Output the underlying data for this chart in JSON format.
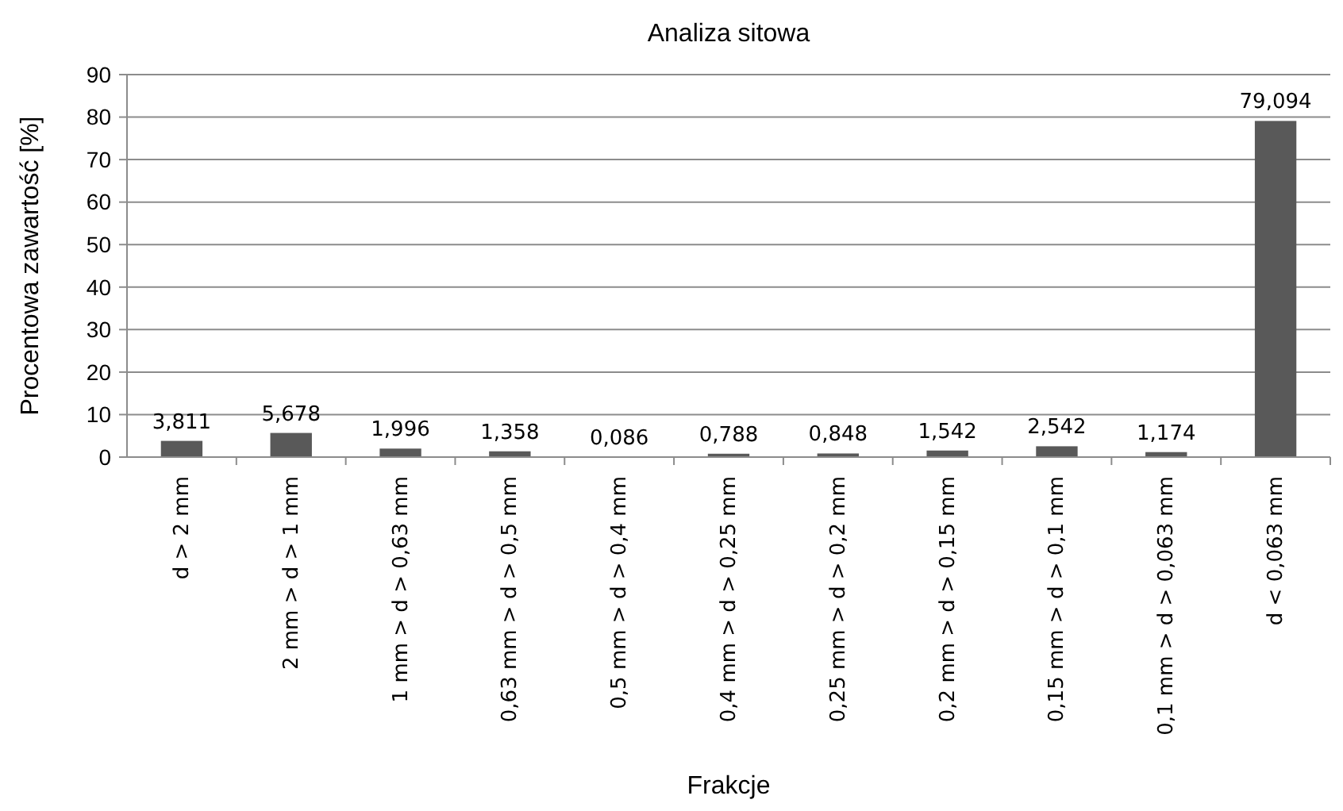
{
  "chart_data": {
    "type": "bar",
    "title": "Analiza sitowa",
    "xlabel": "Frakcje",
    "ylabel": "Procentowa zawartość [%]",
    "categories": [
      "d > 2 mm",
      "2 mm > d > 1 mm",
      "1 mm > d > 0,63 mm",
      "0,63 mm > d > 0,5 mm",
      "0,5 mm > d > 0,4 mm",
      "0,4 mm > d > 0,25 mm",
      "0,25 mm > d > 0,2 mm",
      "0,2 mm > d > 0,15 mm",
      "0,15 mm > d > 0,1 mm",
      "0,1 mm > d > 0,063 mm",
      "d < 0,063 mm"
    ],
    "values": [
      3.811,
      5.678,
      1.996,
      1.358,
      0.086,
      0.788,
      0.848,
      1.542,
      2.542,
      1.174,
      79.094
    ],
    "value_labels": [
      "3,811",
      "5,678",
      "1,996",
      "1,358",
      "0,086",
      "0,788",
      "0,848",
      "1,542",
      "2,542",
      "1,174",
      "79,094"
    ],
    "color": "#595959",
    "ylim": [
      0,
      90
    ],
    "yticks": [
      0,
      10,
      20,
      30,
      40,
      50,
      60,
      70,
      80,
      90
    ],
    "grid": "y"
  }
}
